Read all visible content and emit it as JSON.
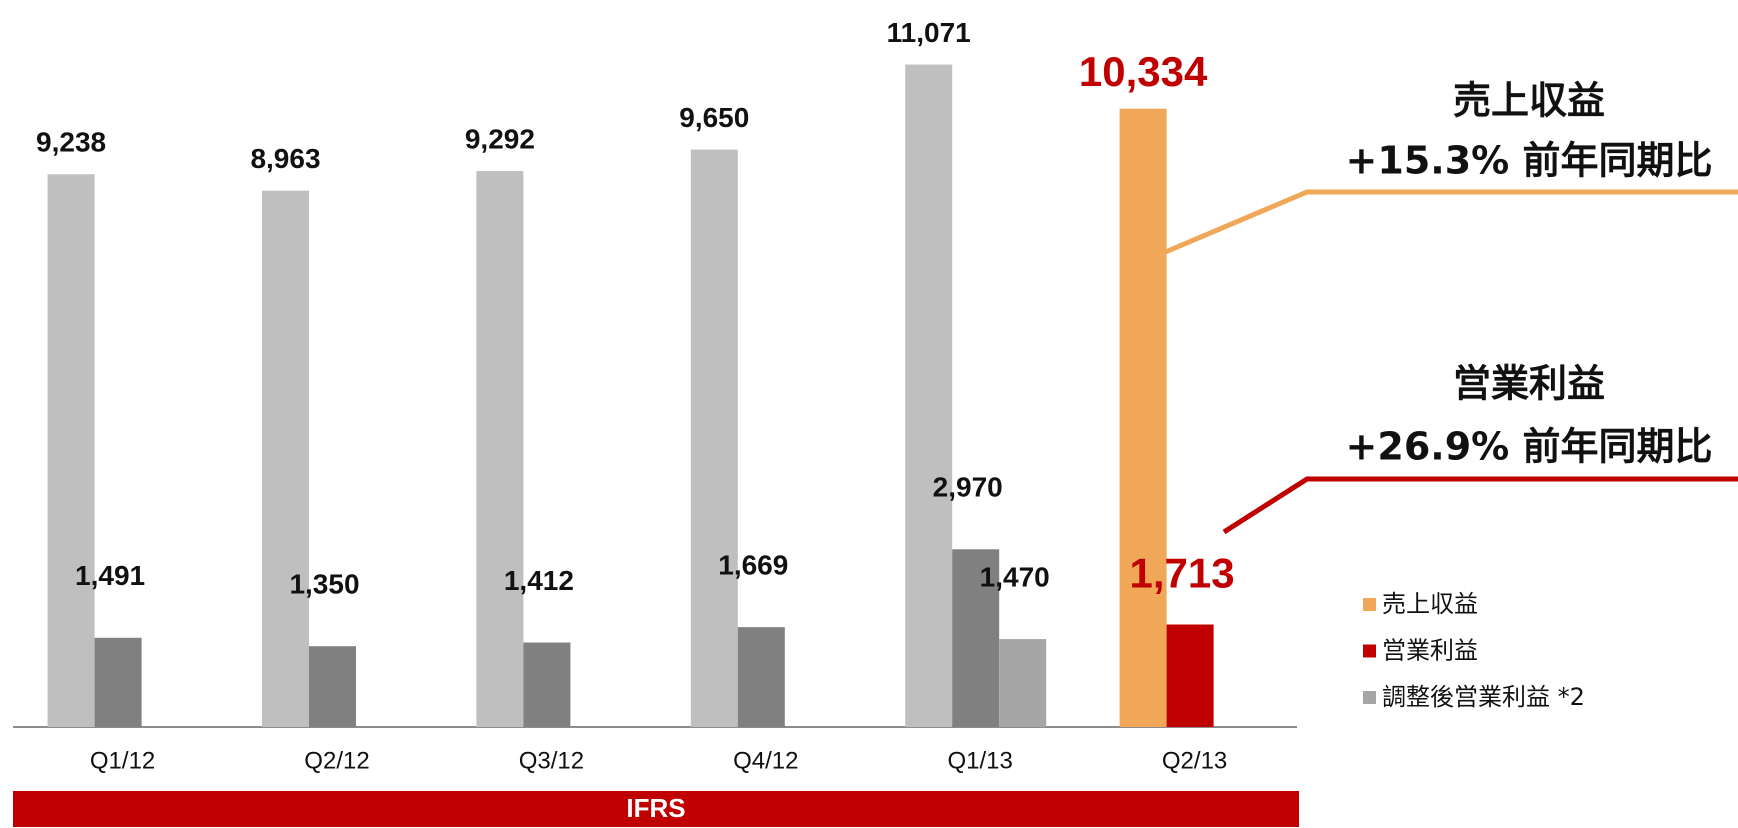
{
  "chart_data": {
    "type": "bar",
    "categories": [
      "Q1/12",
      "Q2/12",
      "Q3/12",
      "Q4/12",
      "Q1/13",
      "Q2/13"
    ],
    "series": [
      {
        "name": "売上収益",
        "color": "#f0a858",
        "colors": [
          "#bfbfbf",
          "#bfbfbf",
          "#bfbfbf",
          "#bfbfbf",
          "#bfbfbf",
          "#f0a858"
        ],
        "values": [
          9238,
          8963,
          9292,
          9650,
          11071,
          10334
        ],
        "value_labels": [
          "9,238",
          "8,963",
          "9,292",
          "9,650",
          "11,071",
          "10,334"
        ]
      },
      {
        "name": "営業利益",
        "color": "#c00000",
        "colors": [
          "#808080",
          "#808080",
          "#808080",
          "#808080",
          "#808080",
          "#c00000"
        ],
        "values": [
          1491,
          1350,
          1412,
          1669,
          2970,
          1713
        ],
        "value_labels": [
          "1,491",
          "1,350",
          "1,412",
          "1,669",
          "2,970",
          "1,713"
        ]
      },
      {
        "name": "調整後営業利益 *2",
        "color": "#a6a6a6",
        "colors": [
          "#a6a6a6",
          "#a6a6a6",
          "#a6a6a6",
          "#a6a6a6",
          "#a6a6a6",
          "#a6a6a6"
        ],
        "values": [
          null,
          null,
          null,
          null,
          1470,
          null
        ],
        "value_labels": [
          null,
          null,
          null,
          null,
          "1,470",
          null
        ]
      }
    ],
    "ylim": [
      0,
      12000
    ],
    "annotations": [
      "売上収益",
      "+15.3% 前年同期比",
      "営業利益",
      "+26.9% 前年同期比"
    ],
    "footer": "IFRS"
  }
}
